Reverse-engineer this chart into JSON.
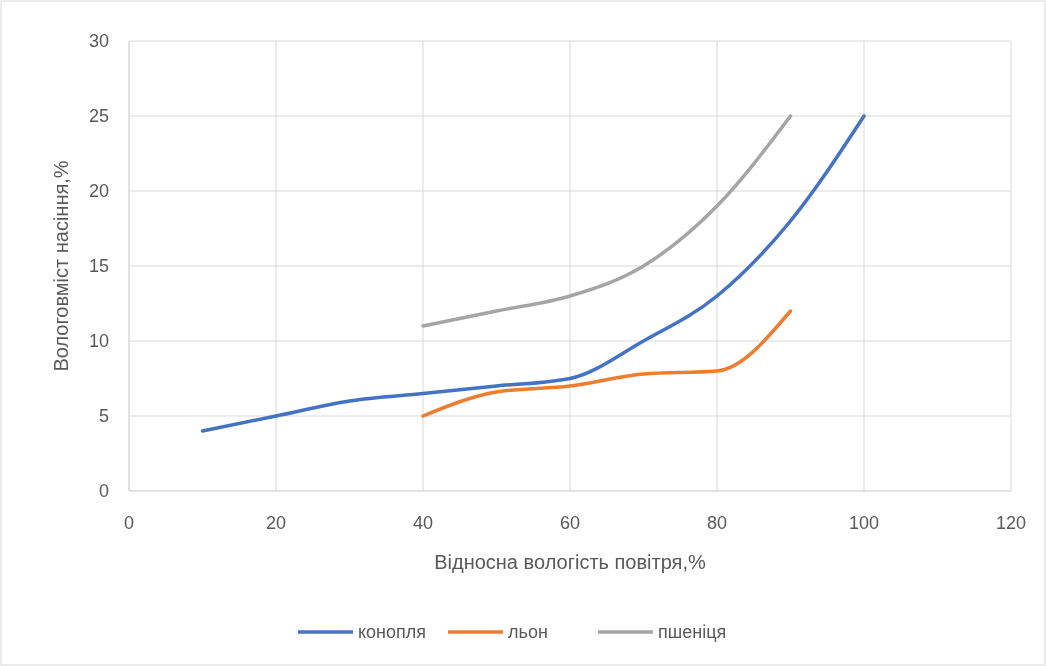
{
  "chart_data": {
    "type": "line",
    "xlabel": "Відносна вологість повітря,%",
    "ylabel": "Вологовміст насіння,%",
    "xlim": [
      0,
      120
    ],
    "xticks": [
      0,
      20,
      40,
      60,
      80,
      100,
      120
    ],
    "ylim": [
      0,
      30
    ],
    "yticks": [
      0,
      5,
      10,
      15,
      20,
      25,
      30
    ],
    "grid": true,
    "legend": "bottom",
    "marker": "none",
    "line_style": "solid",
    "series": [
      {
        "name": "конопля",
        "color": "#4472c4",
        "x": [
          10,
          20,
          30,
          40,
          50,
          60,
          70,
          80,
          90,
          100
        ],
        "values": [
          4,
          5,
          6,
          6.5,
          7,
          7.5,
          10,
          13,
          18,
          25
        ]
      },
      {
        "name": "льон",
        "color": "#ed7d31",
        "x": [
          40,
          50,
          60,
          70,
          80,
          90
        ],
        "values": [
          5,
          6.6,
          7,
          7.8,
          8,
          12
        ]
      },
      {
        "name": "пшеніця",
        "color": "#a5a5a5",
        "x": [
          40,
          50,
          60,
          70,
          80,
          90
        ],
        "values": [
          11,
          12,
          13,
          15,
          19,
          25
        ]
      }
    ]
  }
}
